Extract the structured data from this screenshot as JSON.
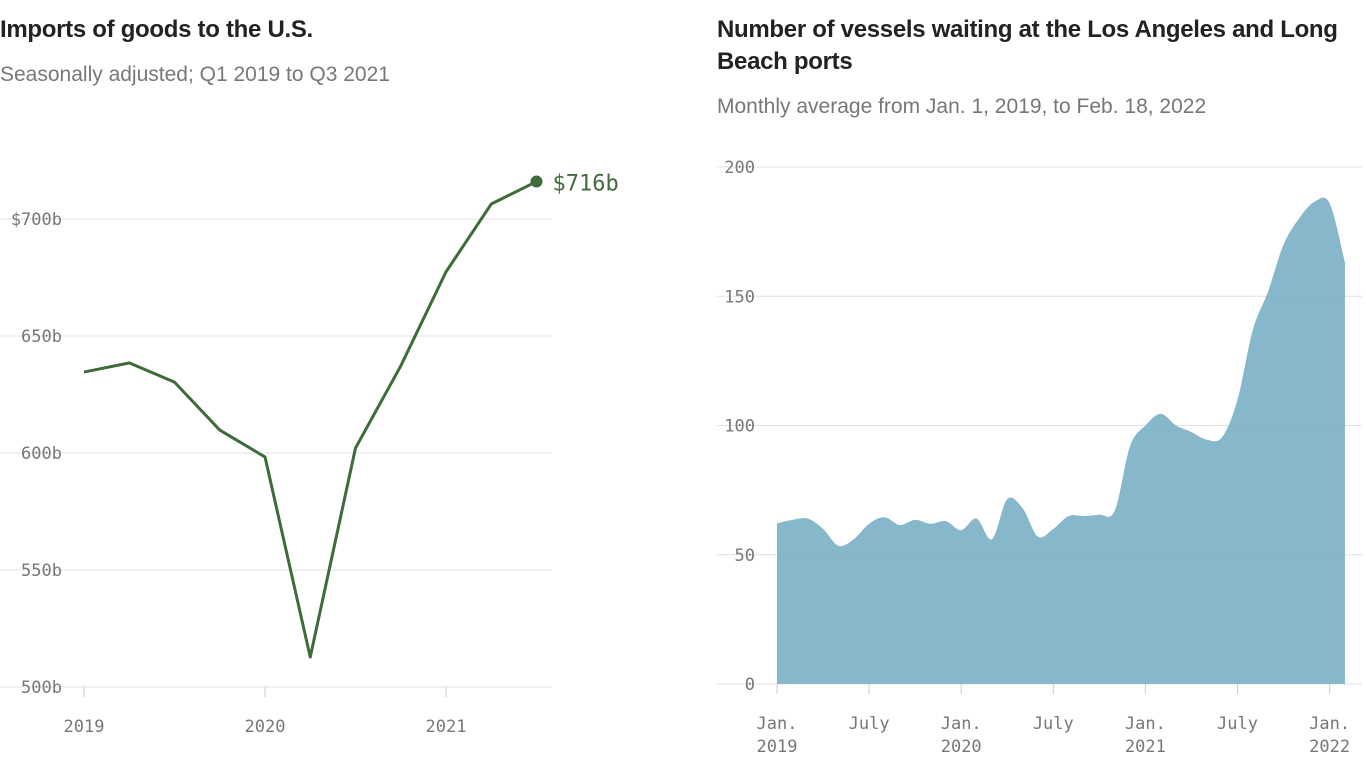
{
  "chart_data": [
    {
      "type": "line",
      "title": "Imports of goods to the U.S.",
      "subtitle": "Seasonally adjusted; Q1 2019 to Q3 2021",
      "x": [
        "Q1 2019",
        "Q2 2019",
        "Q3 2019",
        "Q4 2019",
        "Q1 2020",
        "Q2 2020",
        "Q3 2020",
        "Q4 2020",
        "Q1 2021",
        "Q2 2021",
        "Q3 2021"
      ],
      "values": [
        634.6,
        638.5,
        630.3,
        609.8,
        598.3,
        512.8,
        602.1,
        637.2,
        677.4,
        706.4,
        716
      ],
      "ylim": [
        500,
        730
      ],
      "yticks": [
        500,
        550,
        600,
        650,
        700
      ],
      "ytick_labels": [
        "500b",
        "550b",
        "600b",
        "650b",
        "$700b"
      ],
      "xtick_labels": [
        "2019",
        "2020",
        "2021"
      ],
      "end_label": "$716b",
      "grid": true,
      "color": "#3e6b3a"
    },
    {
      "type": "area",
      "title": "Number of vessels waiting at the Los Angeles and Long Beach ports",
      "subtitle": "Monthly average from Jan. 1, 2019, to Feb. 18, 2022",
      "x": [
        "Jan 2019",
        "Feb 2019",
        "Mar 2019",
        "Apr 2019",
        "May 2019",
        "Jun 2019",
        "Jul 2019",
        "Aug 2019",
        "Sep 2019",
        "Oct 2019",
        "Nov 2019",
        "Dec 2019",
        "Jan 2020",
        "Feb 2020",
        "Mar 2020",
        "Apr 2020",
        "May 2020",
        "Jun 2020",
        "Jul 2020",
        "Aug 2020",
        "Sep 2020",
        "Oct 2020",
        "Nov 2020",
        "Dec 2020",
        "Jan 2021",
        "Feb 2021",
        "Mar 2021",
        "Apr 2021",
        "May 2021",
        "Jun 2021",
        "Jul 2021",
        "Aug 2021",
        "Sep 2021",
        "Oct 2021",
        "Nov 2021",
        "Dec 2021",
        "Jan 2022",
        "Feb 2022"
      ],
      "values": [
        62.2,
        63.5,
        64,
        60,
        53.5,
        56,
        62,
        64.5,
        61.5,
        63.5,
        62,
        63,
        59.5,
        64,
        56,
        71.5,
        68,
        57,
        60,
        65,
        65,
        65.5,
        67,
        92,
        100,
        104.5,
        100,
        97.5,
        94.5,
        95.5,
        110,
        137,
        152,
        170,
        180,
        186.5,
        186,
        163
      ],
      "ylim": [
        0,
        200
      ],
      "yticks": [
        0,
        50,
        100,
        150,
        200
      ],
      "ytick_labels": [
        "0",
        "50",
        "100",
        "150",
        "200"
      ],
      "xtick_labels": [
        [
          "Jan.",
          "2019"
        ],
        [
          "July",
          ""
        ],
        [
          "Jan.",
          "2020"
        ],
        [
          "July",
          ""
        ],
        [
          "Jan.",
          "2021"
        ],
        [
          "July",
          ""
        ],
        [
          "Jan.",
          "2022"
        ]
      ],
      "grid": true,
      "color": "#7fb3c8"
    }
  ]
}
